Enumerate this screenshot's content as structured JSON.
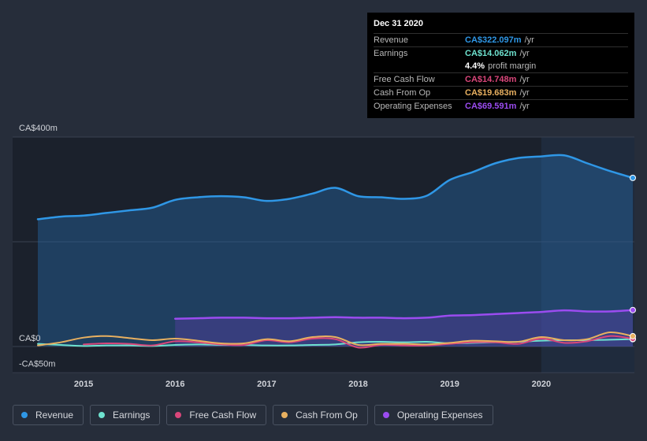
{
  "tooltip": {
    "date": "Dec 31 2020",
    "rows": [
      {
        "label": "Revenue",
        "value": "CA$322.097m",
        "unit": "/yr",
        "color": "#2f97e6"
      },
      {
        "label": "Earnings",
        "value": "CA$14.062m",
        "unit": "/yr",
        "color": "#6ee2cf"
      },
      {
        "label": "",
        "value": "4.4%",
        "unit": "profit margin",
        "color": "#ffffff"
      },
      {
        "label": "Free Cash Flow",
        "value": "CA$14.748m",
        "unit": "/yr",
        "color": "#d9467a"
      },
      {
        "label": "Cash From Op",
        "value": "CA$19.683m",
        "unit": "/yr",
        "color": "#e8b060"
      },
      {
        "label": "Operating Expenses",
        "value": "CA$69.591m",
        "unit": "/yr",
        "color": "#9b4cf0"
      }
    ]
  },
  "legend": [
    {
      "label": "Revenue",
      "color": "#2f97e6"
    },
    {
      "label": "Earnings",
      "color": "#6ee2cf"
    },
    {
      "label": "Free Cash Flow",
      "color": "#d9467a"
    },
    {
      "label": "Cash From Op",
      "color": "#e8b060"
    },
    {
      "label": "Operating Expenses",
      "color": "#9b4cf0"
    }
  ],
  "chart_data": {
    "type": "area",
    "title": "",
    "xlabel": "",
    "ylabel": "",
    "ylim": [
      -50,
      400
    ],
    "xlim": [
      2014.5,
      2021.0
    ],
    "y_tick_labels": [
      {
        "value": 400,
        "label": "CA$400m"
      },
      {
        "value": 0,
        "label": "CA$0"
      },
      {
        "value": -50,
        "label": "-CA$50m"
      }
    ],
    "x_ticks": [
      {
        "value": 2015,
        "label": "2015"
      },
      {
        "value": 2016,
        "label": "2016"
      },
      {
        "value": 2017,
        "label": "2017"
      },
      {
        "value": 2018,
        "label": "2018"
      },
      {
        "value": 2019,
        "label": "2019"
      },
      {
        "value": 2020,
        "label": "2020"
      }
    ],
    "highlight_start": 2020.0,
    "series": [
      {
        "name": "Revenue",
        "color": "#2f97e6",
        "fill": true,
        "x": [
          2014.5,
          2014.75,
          2015.0,
          2015.25,
          2015.5,
          2015.75,
          2016.0,
          2016.25,
          2016.5,
          2016.75,
          2017.0,
          2017.25,
          2017.5,
          2017.75,
          2018.0,
          2018.25,
          2018.5,
          2018.75,
          2019.0,
          2019.25,
          2019.5,
          2019.75,
          2020.0,
          2020.25,
          2020.5,
          2020.75,
          2021.0
        ],
        "values": [
          243,
          248,
          250,
          255,
          260,
          265,
          280,
          285,
          287,
          285,
          278,
          282,
          292,
          303,
          287,
          285,
          282,
          288,
          318,
          333,
          350,
          360,
          363,
          365,
          350,
          335,
          322
        ]
      },
      {
        "name": "Operating Expenses",
        "color": "#9b4cf0",
        "fill": true,
        "x": [
          2016.0,
          2016.25,
          2016.5,
          2016.75,
          2017.0,
          2017.25,
          2017.5,
          2017.75,
          2018.0,
          2018.25,
          2018.5,
          2018.75,
          2019.0,
          2019.25,
          2019.5,
          2019.75,
          2020.0,
          2020.25,
          2020.5,
          2020.75,
          2021.0
        ],
        "values": [
          53,
          54,
          55,
          55,
          54,
          54,
          55,
          56,
          55,
          55,
          54,
          55,
          59,
          60,
          62,
          64,
          66,
          69,
          67,
          67,
          69.6
        ]
      },
      {
        "name": "Earnings",
        "color": "#6ee2cf",
        "fill": false,
        "x": [
          2014.5,
          2014.75,
          2015.0,
          2015.25,
          2015.5,
          2015.75,
          2016.0,
          2016.25,
          2016.5,
          2016.75,
          2017.0,
          2017.25,
          2017.5,
          2017.75,
          2018.0,
          2018.25,
          2018.5,
          2018.75,
          2019.0,
          2019.25,
          2019.5,
          2019.75,
          2020.0,
          2020.25,
          2020.5,
          2020.75,
          2021.0
        ],
        "values": [
          5,
          3,
          1,
          2,
          2,
          1,
          3,
          4,
          3,
          3,
          2,
          2,
          3,
          4,
          8,
          9,
          8,
          9,
          6,
          7,
          8,
          9,
          11,
          12,
          12,
          13,
          14.1
        ]
      },
      {
        "name": "Free Cash Flow",
        "color": "#d9467a",
        "fill": false,
        "x": [
          2015.0,
          2015.25,
          2015.5,
          2015.75,
          2016.0,
          2016.25,
          2016.5,
          2016.75,
          2017.0,
          2017.25,
          2017.5,
          2017.75,
          2018.0,
          2018.25,
          2018.5,
          2018.75,
          2019.0,
          2019.25,
          2019.5,
          2019.75,
          2020.0,
          2020.25,
          2020.5,
          2020.75,
          2021.0
        ],
        "values": [
          4,
          6,
          5,
          2,
          10,
          8,
          4,
          3,
          12,
          8,
          15,
          14,
          -2,
          3,
          2,
          2,
          5,
          8,
          8,
          5,
          15,
          7,
          10,
          20,
          14.7
        ]
      },
      {
        "name": "Cash From Op",
        "color": "#e8b060",
        "fill": false,
        "x": [
          2014.5,
          2014.75,
          2015.0,
          2015.25,
          2015.5,
          2015.75,
          2016.0,
          2016.25,
          2016.5,
          2016.75,
          2017.0,
          2017.25,
          2017.5,
          2017.75,
          2018.0,
          2018.25,
          2018.5,
          2018.75,
          2019.0,
          2019.25,
          2019.5,
          2019.75,
          2020.0,
          2020.25,
          2020.5,
          2020.75,
          2021.0
        ],
        "values": [
          2,
          8,
          17,
          20,
          16,
          12,
          15,
          11,
          6,
          6,
          14,
          10,
          18,
          18,
          3,
          5,
          5,
          4,
          7,
          11,
          10,
          9,
          18,
          12,
          14,
          27,
          19.7
        ]
      }
    ]
  }
}
